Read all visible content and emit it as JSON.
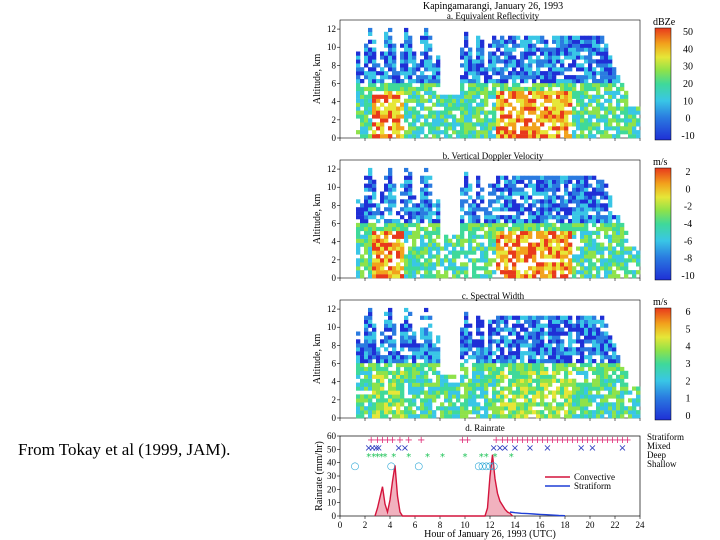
{
  "caption": "From Tokay et al (1999, JAM).",
  "figure_title": "Kapingamarangi, January 26, 1993",
  "panels": [
    {
      "title": "a. Equivalent Reflectivity",
      "units": "dBZe",
      "ylabel": "Altitude, km",
      "colorbar_ticks": [
        "50",
        "40",
        "30",
        "20",
        "10",
        "0",
        "-10"
      ],
      "palette": [
        "#1f2fd6",
        "#2a7be0",
        "#39c6e6",
        "#3fd99a",
        "#8ee24a",
        "#e6e638",
        "#f2a21c",
        "#e8391c"
      ]
    },
    {
      "title": "b. Vertical Doppler Velocity",
      "units": "m/s",
      "ylabel": "Altitude, km",
      "colorbar_ticks": [
        "2",
        "0",
        "-2",
        "-4",
        "-6",
        "-8",
        "-10"
      ],
      "palette": [
        "#1f2fd6",
        "#2a7be0",
        "#39c6e6",
        "#3fd99a",
        "#8ee24a",
        "#e6e638",
        "#f2a21c",
        "#e8391c"
      ]
    },
    {
      "title": "c. Spectral Width",
      "units": "m/s",
      "ylabel": "Altitude, km",
      "colorbar_ticks": [
        "6",
        "5",
        "4",
        "3",
        "2",
        "1",
        "0"
      ],
      "palette": [
        "#1f2fd6",
        "#2a7be0",
        "#39c6e6",
        "#3fd99a",
        "#8ee24a",
        "#e6e638",
        "#f2a21c",
        "#e8391c"
      ]
    }
  ],
  "rain_panel": {
    "title": "d. Rainrate",
    "ylabel": "Rainrate (mm/hr)",
    "xlabel": "Hour of January 26, 1993 (UTC)",
    "legend_classes": [
      "Stratiform",
      "Mixed",
      "Deep",
      "Shallow"
    ],
    "legend_lines": [
      "Convective",
      "Stratiform"
    ],
    "colors": {
      "convective": "#d4143c",
      "stratiform": "#1f3fd6",
      "mixed": "#2d3bbf",
      "deep": "#22c45a",
      "shallow": "#2aa6d6",
      "strat_marks": "#e0307a"
    }
  },
  "chart_data": {
    "type": "line",
    "title": "Kapingamarangi, January 26, 1993",
    "xlabel": "Hour of January 26, 1993 (UTC)",
    "ylabel": "Rainrate (mm/hr)",
    "xlim": [
      0,
      24
    ],
    "ylim": [
      0,
      60
    ],
    "x_ticks": [
      0,
      2,
      4,
      6,
      8,
      10,
      12,
      14,
      16,
      18,
      20,
      22,
      24
    ],
    "y_ticks": [
      0,
      10,
      20,
      30,
      40,
      50,
      60
    ],
    "series": [
      {
        "name": "Convective",
        "x": [
          2.8,
          3.0,
          3.2,
          3.4,
          3.6,
          3.8,
          4.0,
          4.2,
          4.4,
          4.6,
          4.8,
          5.0,
          11.6,
          11.8,
          12.0,
          12.2,
          12.4,
          12.6,
          12.8,
          13.0,
          13.2,
          13.4,
          13.6,
          13.8
        ],
        "y": [
          0,
          6,
          14,
          22,
          9,
          3,
          12,
          26,
          38,
          15,
          3,
          0,
          0,
          6,
          30,
          46,
          28,
          17,
          11,
          8,
          5,
          3,
          2,
          0
        ]
      },
      {
        "name": "Stratiform",
        "x": [
          13.6,
          14.0,
          14.5,
          15.0,
          15.5,
          16.0,
          16.5,
          17.0,
          17.5,
          18.0
        ],
        "y": [
          3,
          2.5,
          2,
          1.8,
          1.5,
          1.2,
          1.0,
          0.7,
          0.4,
          0.2
        ]
      }
    ],
    "classification_hours": {
      "Stratiform": [
        2.5,
        3.0,
        3.4,
        3.8,
        4.2,
        4.8,
        5.5,
        6.5,
        9.8,
        10.2,
        12.5,
        13.0,
        13.4,
        13.8,
        14.2,
        14.6,
        15.0,
        15.4,
        15.8,
        16.2,
        16.6,
        17.0,
        17.4,
        17.8,
        18.2,
        18.6,
        19.0,
        19.4,
        19.8,
        20.2,
        20.6,
        21.0,
        21.4,
        21.8,
        22.2,
        22.6,
        23.0
      ],
      "Mixed": [
        2.3,
        2.6,
        2.9,
        3.1,
        4.7,
        5.2,
        12.3,
        12.8,
        13.2,
        14.0,
        15.2,
        16.6,
        19.3,
        20.2,
        22.6
      ],
      "Deep": [
        2.3,
        2.7,
        3.0,
        3.3,
        3.6,
        4.3,
        5.5,
        7.0,
        8.2,
        10.0,
        11.3,
        11.7,
        12.4,
        13.7
      ],
      "Shallow": [
        1.2,
        4.1,
        6.3,
        11.1,
        11.4,
        11.7,
        12.0,
        12.3
      ]
    }
  }
}
